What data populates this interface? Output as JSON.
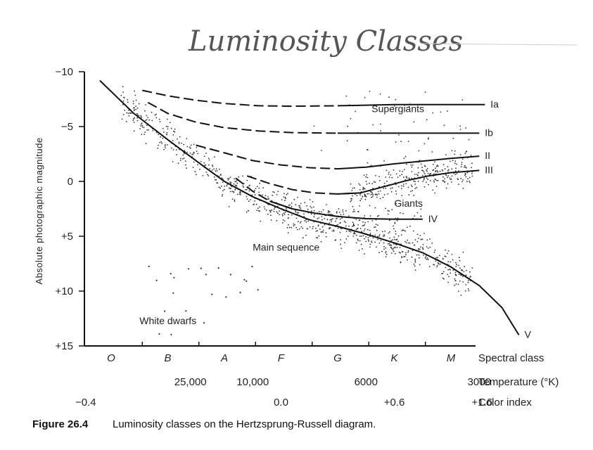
{
  "page_title": "Luminosity Classes",
  "caption": {
    "number": "Figure 26.4",
    "text": "Luminosity classes on the Hertzsprung-Russell diagram."
  },
  "chart_data": {
    "type": "scatter",
    "title": "",
    "ylabel": "Absolute photographic magnitude",
    "ylim": [
      -10,
      15
    ],
    "y_inverted": true,
    "y_ticks": [
      {
        "value": -10,
        "label": "−10"
      },
      {
        "value": -5,
        "label": "−5"
      },
      {
        "value": 0,
        "label": "0"
      },
      {
        "value": 5,
        "label": "+5"
      },
      {
        "value": 10,
        "label": "+10"
      },
      {
        "value": 15,
        "label": "+15"
      }
    ],
    "x_axis_label": "Spectral class",
    "spectral_classes": [
      "O",
      "B",
      "A",
      "F",
      "G",
      "K",
      "M"
    ],
    "temperature": {
      "label": "Temperature (°K)",
      "ticks": [
        {
          "class_pos": 1.4,
          "label": "25,000"
        },
        {
          "class_pos": 2.5,
          "label": "10,000"
        },
        {
          "class_pos": 4.5,
          "label": "6000"
        },
        {
          "class_pos": 6.5,
          "label": "3000"
        }
      ]
    },
    "color_index": {
      "label": "Color index",
      "ticks": [
        {
          "class_pos": -0.45,
          "label": "−0.4"
        },
        {
          "class_pos": 3.0,
          "label": "0.0"
        },
        {
          "class_pos": 5.0,
          "label": "+0.6"
        },
        {
          "class_pos": 6.55,
          "label": "+1.6"
        }
      ]
    },
    "series": [
      {
        "name": "Ia",
        "style": "dashed-solid",
        "dash_until": 4.0,
        "x": [
          0.55,
          1.0,
          1.5,
          2.0,
          2.6,
          3.2,
          4.0,
          5.0,
          6.0,
          6.6
        ],
        "y": [
          -8.3,
          -7.8,
          -7.4,
          -7.1,
          -6.9,
          -6.85,
          -6.9,
          -7.0,
          -7.0,
          -7.0
        ]
      },
      {
        "name": "Ib",
        "style": "dashed-solid",
        "dash_until": 4.0,
        "x": [
          0.65,
          1.0,
          1.5,
          2.0,
          2.6,
          3.2,
          4.0,
          5.0,
          6.0,
          6.5
        ],
        "y": [
          -7.2,
          -6.2,
          -5.4,
          -4.9,
          -4.6,
          -4.45,
          -4.4,
          -4.4,
          -4.4,
          -4.4
        ]
      },
      {
        "name": "II",
        "style": "dashed-solid",
        "dash_until": 4.1,
        "x": [
          1.5,
          2.0,
          2.5,
          3.0,
          3.5,
          4.0,
          4.5,
          5.0,
          5.6,
          6.0,
          6.5
        ],
        "y": [
          -3.3,
          -2.6,
          -1.9,
          -1.5,
          -1.25,
          -1.15,
          -1.3,
          -1.6,
          -1.9,
          -2.1,
          -2.3
        ]
      },
      {
        "name": "III",
        "style": "dashed-solid",
        "dash_until": 4.4,
        "x": [
          2.4,
          2.8,
          3.2,
          3.6,
          4.0,
          4.4,
          4.8,
          5.2,
          5.6,
          6.0,
          6.5
        ],
        "y": [
          -0.5,
          0.2,
          0.75,
          1.05,
          1.15,
          1.05,
          0.5,
          -0.05,
          -0.5,
          -0.8,
          -1.0
        ]
      },
      {
        "name": "IV",
        "style": "dashed-solid",
        "dash_until": 3.3,
        "x": [
          2.2,
          2.5,
          2.8,
          3.2,
          3.6,
          4.0,
          4.5,
          5.0,
          5.5
        ],
        "y": [
          -0.3,
          0.9,
          1.8,
          2.5,
          2.9,
          3.2,
          3.4,
          3.45,
          3.45
        ]
      },
      {
        "name": "V",
        "style": "solid",
        "x": [
          -0.2,
          0.4,
          1.0,
          1.6,
          2.0,
          2.5,
          3.0,
          3.5,
          4.0,
          4.5,
          5.0,
          5.5,
          6.0,
          6.5,
          6.9,
          7.2
        ],
        "y": [
          -9.2,
          -6.2,
          -3.8,
          -1.5,
          0.0,
          1.4,
          2.5,
          3.5,
          4.1,
          4.8,
          5.6,
          6.5,
          7.8,
          9.5,
          11.5,
          14.0
        ]
      }
    ],
    "annotations": [
      {
        "text": "Supergiants",
        "class_pos": 4.6,
        "mag": -6.3
      },
      {
        "text": "Giants",
        "class_pos": 5.0,
        "mag": 2.3
      },
      {
        "text": "Main sequence",
        "class_pos": 2.5,
        "mag": 6.3
      },
      {
        "text": "White dwarfs",
        "class_pos": 0.5,
        "mag": 13.0
      }
    ],
    "grid": false
  }
}
